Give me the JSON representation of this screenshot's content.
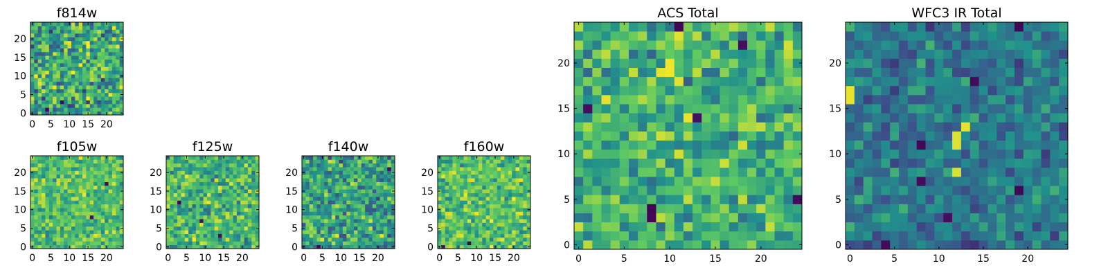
{
  "figure": {
    "colormap": "viridis",
    "colormap_stops": [
      "#440154",
      "#3b528b",
      "#21918c",
      "#5ec962",
      "#fde725"
    ]
  },
  "chart_data": [
    {
      "type": "heatmap",
      "title": "f814w",
      "grid": [
        25,
        25
      ],
      "xlim": [
        -0.5,
        24.5
      ],
      "ylim": [
        -0.5,
        24.5
      ],
      "xticks": [
        0,
        5,
        10,
        15,
        20
      ],
      "yticks": [
        0,
        5,
        10,
        15,
        20
      ],
      "value_range": [
        0,
        1
      ],
      "base_level": 0.6,
      "noise": 0.28,
      "seed": 11,
      "hotspots": [
        {
          "x": 10,
          "y": 19,
          "value": 0.97
        },
        {
          "x": 9,
          "y": 19,
          "value": 0.93
        },
        {
          "x": 10,
          "y": 18,
          "value": 0.92
        }
      ],
      "low_spots": [
        {
          "x": 4,
          "y": 1,
          "value": 0.02
        },
        {
          "x": 8,
          "y": 3,
          "value": 0.03
        }
      ]
    },
    {
      "type": "heatmap",
      "title": "f105w",
      "grid": [
        25,
        25
      ],
      "xlim": [
        -0.5,
        24.5
      ],
      "ylim": [
        -0.5,
        24.5
      ],
      "xticks": [
        0,
        5,
        10,
        15,
        20
      ],
      "yticks": [
        0,
        5,
        10,
        15,
        20
      ],
      "value_range": [
        0,
        1
      ],
      "base_level": 0.7,
      "noise": 0.18,
      "seed": 23,
      "hotspots": [
        {
          "x": 12,
          "y": 20,
          "value": 0.96
        },
        {
          "x": 14,
          "y": 19,
          "value": 0.93
        }
      ],
      "low_spots": [
        {
          "x": 20,
          "y": 17,
          "value": 0.03
        },
        {
          "x": 16,
          "y": 8,
          "value": 0.05
        }
      ]
    },
    {
      "type": "heatmap",
      "title": "f125w",
      "grid": [
        25,
        25
      ],
      "xlim": [
        -0.5,
        24.5
      ],
      "ylim": [
        -0.5,
        24.5
      ],
      "xticks": [
        0,
        5,
        10,
        15,
        20
      ],
      "yticks": [
        0,
        5,
        10,
        15,
        20
      ],
      "value_range": [
        0,
        1
      ],
      "base_level": 0.66,
      "noise": 0.22,
      "seed": 37,
      "hotspots": [
        {
          "x": 11,
          "y": 14,
          "value": 0.95
        },
        {
          "x": 21,
          "y": 5,
          "value": 0.94
        }
      ],
      "low_spots": [
        {
          "x": 3,
          "y": 12,
          "value": 0.02
        },
        {
          "x": 9,
          "y": 7,
          "value": 0.04
        },
        {
          "x": 14,
          "y": 3,
          "value": 0.05
        }
      ]
    },
    {
      "type": "heatmap",
      "title": "f140w",
      "grid": [
        25,
        25
      ],
      "xlim": [
        -0.5,
        24.5
      ],
      "ylim": [
        -0.5,
        24.5
      ],
      "xticks": [
        0,
        5,
        10,
        15,
        20
      ],
      "yticks": [
        0,
        5,
        10,
        15,
        20
      ],
      "value_range": [
        0,
        1
      ],
      "base_level": 0.58,
      "noise": 0.26,
      "seed": 53,
      "hotspots": [
        {
          "x": 5,
          "y": 2,
          "value": 0.96
        }
      ],
      "low_spots": [
        {
          "x": 4,
          "y": 0,
          "value": 0.02
        },
        {
          "x": 23,
          "y": 21,
          "value": 0.03
        }
      ]
    },
    {
      "type": "heatmap",
      "title": "f160w",
      "grid": [
        25,
        25
      ],
      "xlim": [
        -0.5,
        24.5
      ],
      "ylim": [
        -0.5,
        24.5
      ],
      "xticks": [
        0,
        5,
        10,
        15,
        20
      ],
      "yticks": [
        0,
        5,
        10,
        15,
        20
      ],
      "value_range": [
        0,
        1
      ],
      "base_level": 0.7,
      "noise": 0.2,
      "seed": 71,
      "hotspots": [
        {
          "x": 9,
          "y": 18,
          "value": 0.96
        },
        {
          "x": 20,
          "y": 1,
          "value": 0.95
        }
      ],
      "low_spots": [
        {
          "x": 8,
          "y": 1,
          "value": 0.01
        },
        {
          "x": 1,
          "y": 0,
          "value": 0.04
        }
      ]
    },
    {
      "type": "heatmap",
      "title": "ACS Total",
      "grid": [
        25,
        25
      ],
      "xlim": [
        -0.5,
        24.5
      ],
      "ylim": [
        -0.5,
        24.5
      ],
      "xticks": [
        0,
        5,
        10,
        15,
        20
      ],
      "yticks": [
        0,
        5,
        10,
        15,
        20
      ],
      "value_range": [
        0,
        1
      ],
      "base_level": 0.64,
      "noise": 0.22,
      "seed": 89,
      "hotspots": [
        {
          "x": 10,
          "y": 20,
          "value": 0.98
        },
        {
          "x": 10,
          "y": 19,
          "value": 0.98
        },
        {
          "x": 9,
          "y": 19,
          "value": 0.96
        },
        {
          "x": 11,
          "y": 18,
          "value": 0.95
        },
        {
          "x": 12,
          "y": 14,
          "value": 0.97
        }
      ],
      "low_spots": [
        {
          "x": 11,
          "y": 24,
          "value": 0.02
        },
        {
          "x": 1,
          "y": 15,
          "value": 0.04
        },
        {
          "x": 8,
          "y": 4,
          "value": 0.01
        },
        {
          "x": 8,
          "y": 3,
          "value": 0.02
        },
        {
          "x": 13,
          "y": 14,
          "value": 0.05
        },
        {
          "x": 24,
          "y": 5,
          "value": 0.03
        },
        {
          "x": 18,
          "y": 22,
          "value": 0.04
        }
      ]
    },
    {
      "type": "heatmap",
      "title": "WFC3 IR Total",
      "grid": [
        25,
        25
      ],
      "xlim": [
        -0.5,
        24.5
      ],
      "ylim": [
        -0.5,
        24.5
      ],
      "xticks": [
        0,
        5,
        10,
        15,
        20
      ],
      "yticks": [
        0,
        5,
        10,
        15,
        20
      ],
      "value_range": [
        0,
        1
      ],
      "base_level": 0.4,
      "noise": 0.16,
      "seed": 97,
      "hotspots": [
        {
          "x": 0,
          "y": 16,
          "value": 0.97
        },
        {
          "x": 0,
          "y": 17,
          "value": 0.97
        },
        {
          "x": 13,
          "y": 13,
          "value": 0.96
        },
        {
          "x": 12,
          "y": 12,
          "value": 0.95
        },
        {
          "x": 12,
          "y": 11,
          "value": 0.95
        },
        {
          "x": 12,
          "y": 8,
          "value": 0.94
        }
      ],
      "low_spots": [
        {
          "x": 19,
          "y": 24,
          "value": 0.02
        },
        {
          "x": 14,
          "y": 18,
          "value": 0.03
        },
        {
          "x": 8,
          "y": 11,
          "value": 0.02
        },
        {
          "x": 8,
          "y": 7,
          "value": 0.03
        },
        {
          "x": 19,
          "y": 6,
          "value": 0.02
        },
        {
          "x": 4,
          "y": 0,
          "value": 0.03
        },
        {
          "x": 11,
          "y": 3,
          "value": 0.04
        }
      ]
    }
  ]
}
